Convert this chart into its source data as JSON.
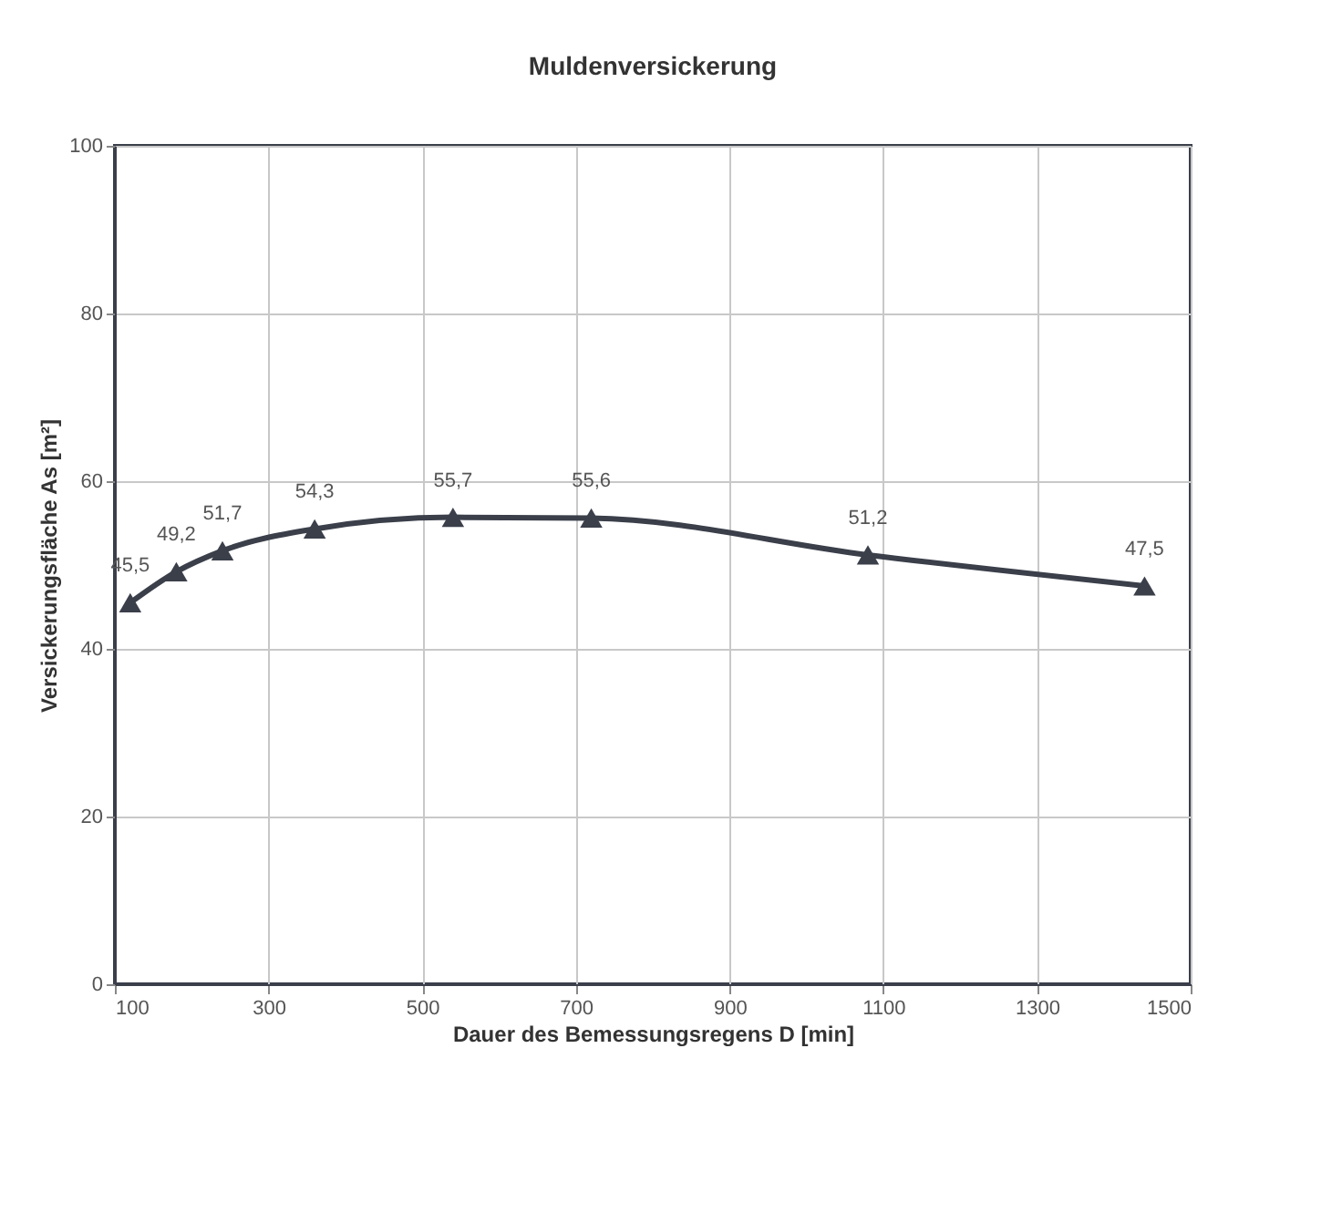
{
  "chart_data": {
    "type": "line",
    "title": "Muldenversickerung",
    "xlabel": "Dauer des Bemessungsregens D [min]",
    "ylabel": "Versickerungsfläche As [m²]",
    "x": [
      120,
      180,
      240,
      360,
      540,
      720,
      1080,
      1440
    ],
    "series": [
      {
        "color": "#3a3f4a",
        "values": [
          45.5,
          49.2,
          51.7,
          54.3,
          55.7,
          55.6,
          51.2,
          47.5
        ],
        "value_labels": [
          "45,5",
          "49,2",
          "51,7",
          "54,3",
          "55,7",
          "55,6",
          "51,2",
          "47,5"
        ]
      }
    ],
    "xlim": [
      100,
      1500
    ],
    "xticks": [
      100,
      300,
      500,
      700,
      900,
      1100,
      1300,
      1500
    ],
    "ylim": [
      0,
      100
    ],
    "yticks": [
      0,
      20,
      40,
      60,
      80,
      100
    ],
    "grid": true,
    "marker": "triangle",
    "line_style": "solid"
  }
}
